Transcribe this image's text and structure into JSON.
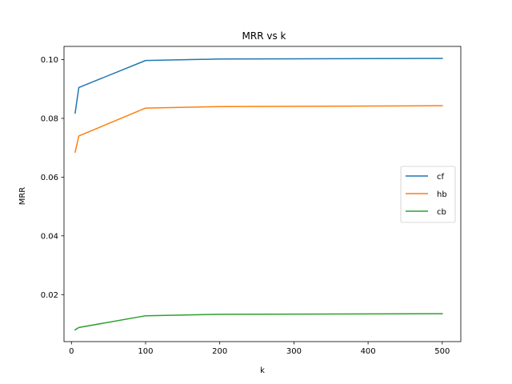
{
  "chart_data": {
    "type": "line",
    "title": "MRR vs k",
    "xlabel": "k",
    "ylabel": "MRR",
    "xlim": [
      -10,
      525
    ],
    "ylim": [
      0.004,
      0.1045
    ],
    "xticks": [
      0,
      100,
      200,
      300,
      400,
      500
    ],
    "yticks": [
      0.02,
      0.04,
      0.06,
      0.08,
      0.1
    ],
    "ytick_labels": [
      "0.02",
      "0.04",
      "0.06",
      "0.08",
      "0.10"
    ],
    "xtick_labels": [
      "0",
      "100",
      "200",
      "300",
      "400",
      "500"
    ],
    "grid": false,
    "legend_position": "center-right",
    "x": [
      5,
      10,
      100,
      200,
      500
    ],
    "series": [
      {
        "name": "cf",
        "color": "#1f77b4",
        "values": [
          0.0818,
          0.0905,
          0.0997,
          0.1002,
          0.1004
        ]
      },
      {
        "name": "hb",
        "color": "#ff7f0e",
        "values": [
          0.0685,
          0.074,
          0.0835,
          0.084,
          0.0843
        ]
      },
      {
        "name": "cb",
        "color": "#2ca02c",
        "values": [
          0.008,
          0.0088,
          0.0128,
          0.0133,
          0.0135
        ]
      }
    ]
  }
}
